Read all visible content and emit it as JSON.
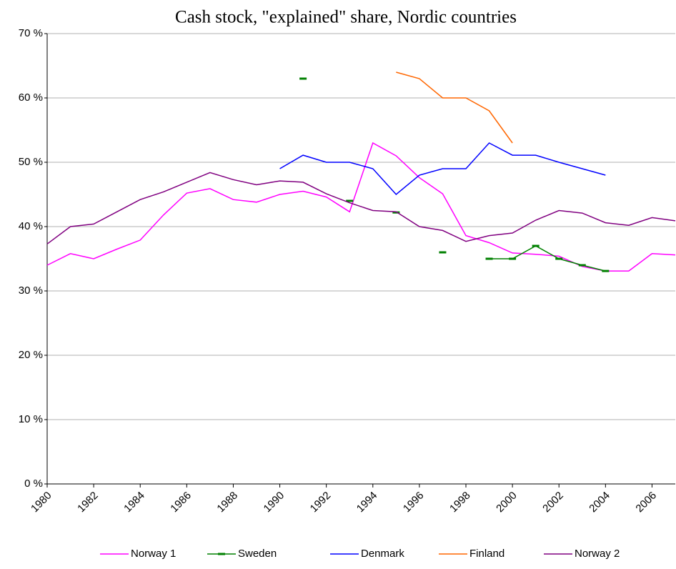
{
  "chart_data": {
    "type": "line",
    "title": "Cash stock, \"explained\" share, Nordic countries",
    "x": [
      1980,
      1981,
      1982,
      1983,
      1984,
      1985,
      1986,
      1987,
      1988,
      1989,
      1990,
      1991,
      1992,
      1993,
      1994,
      1995,
      1996,
      1997,
      1998,
      1999,
      2000,
      2001,
      2002,
      2003,
      2004,
      2005,
      2006,
      2007
    ],
    "xlim": [
      1980,
      2007
    ],
    "xticks": [
      1980,
      1982,
      1984,
      1986,
      1988,
      1990,
      1992,
      1994,
      1996,
      1998,
      2000,
      2002,
      2004,
      2006
    ],
    "ylim": [
      0,
      70
    ],
    "yticks": [
      {
        "value": 0,
        "label": "0 %"
      },
      {
        "value": 10,
        "label": "10 %"
      },
      {
        "value": 20,
        "label": "20 %"
      },
      {
        "value": 30,
        "label": "30 %"
      },
      {
        "value": 40,
        "label": "40 %"
      },
      {
        "value": 50,
        "label": "50 %"
      },
      {
        "value": 60,
        "label": "60 %"
      },
      {
        "value": 70,
        "label": "70 %"
      }
    ],
    "grid": true,
    "legend": "bottom",
    "series": [
      {
        "name": "Norway 1",
        "color": "#ff00ff",
        "values": [
          34,
          35.8,
          35,
          36.5,
          37.9,
          41.8,
          45.2,
          45.9,
          44.2,
          43.8,
          45,
          45.5,
          44.6,
          42.3,
          53,
          51,
          47.6,
          45.1,
          38.6,
          37.5,
          35.9,
          35.7,
          35.4,
          33.8,
          33.1,
          33.1,
          35.8,
          35.6
        ]
      },
      {
        "name": "Sweden",
        "color": "#008000",
        "marker": "dash",
        "values": [
          null,
          null,
          null,
          null,
          null,
          null,
          null,
          null,
          null,
          null,
          null,
          63,
          null,
          44,
          null,
          42.2,
          null,
          36,
          null,
          35,
          35,
          37,
          35,
          34,
          33.1,
          null,
          null,
          null
        ]
      },
      {
        "name": "Denmark",
        "color": "#0000ff",
        "values": [
          null,
          null,
          null,
          null,
          null,
          null,
          null,
          null,
          null,
          null,
          49,
          51.1,
          50,
          50,
          49,
          45,
          48,
          49,
          49,
          53,
          51.1,
          51.1,
          50,
          49,
          48,
          null,
          null,
          null
        ]
      },
      {
        "name": "Finland",
        "color": "#ff6600",
        "values": [
          null,
          null,
          null,
          null,
          null,
          null,
          null,
          null,
          null,
          null,
          null,
          null,
          null,
          null,
          null,
          64,
          63,
          60,
          60,
          58,
          53,
          null,
          null,
          null,
          null,
          null,
          null,
          null
        ]
      },
      {
        "name": "Norway 2",
        "color": "#800080",
        "values": [
          37.3,
          40,
          40.4,
          42.3,
          44.2,
          45.4,
          46.9,
          48.4,
          47.3,
          46.5,
          47.1,
          46.9,
          45.1,
          43.7,
          42.5,
          42.3,
          40,
          39.4,
          37.7,
          38.6,
          39,
          41,
          42.5,
          42.1,
          40.6,
          40.2,
          41.4,
          40.9
        ]
      }
    ]
  }
}
